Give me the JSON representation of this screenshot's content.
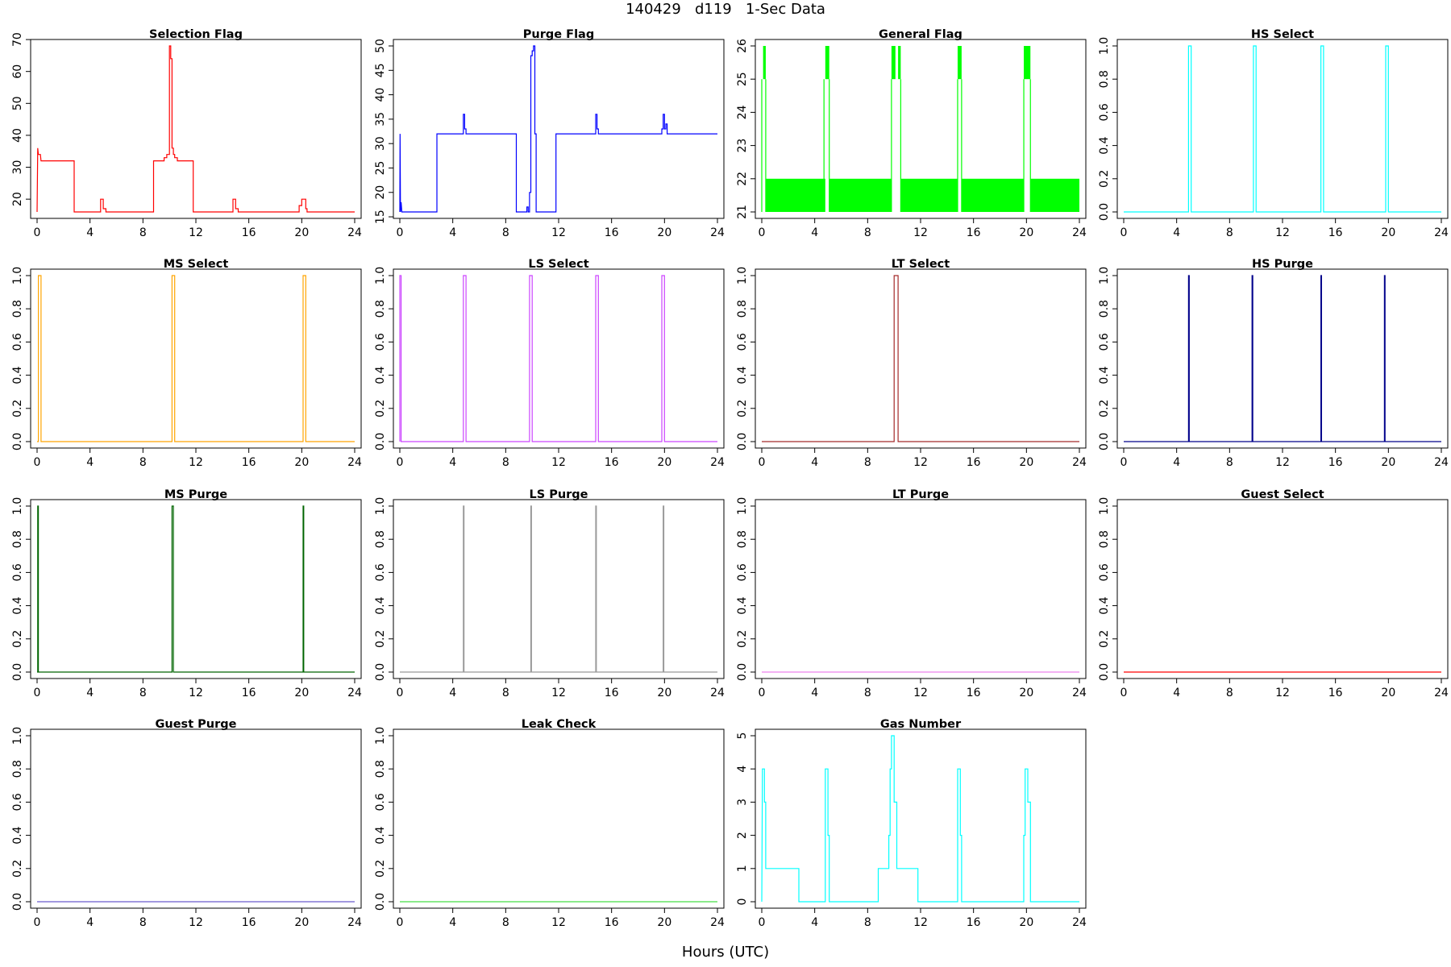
{
  "title": "140429   d119   1-Sec Data",
  "xlabel": "Hours (UTC)",
  "chart_data": [
    {
      "type": "line",
      "title": "Selection Flag",
      "color": "#ff0000",
      "xlim": [
        0,
        24
      ],
      "ylim": [
        16,
        68
      ],
      "yticks": [
        20,
        30,
        40,
        50,
        60,
        70
      ],
      "yticklabels": [
        "20",
        "30",
        "40",
        "50",
        "60",
        "70"
      ],
      "xticks": [
        0,
        4,
        8,
        12,
        16,
        20,
        24
      ],
      "x": [
        0,
        0.05,
        0.1,
        0.25,
        0.3,
        2.8,
        2.8,
        4.8,
        4.8,
        5.0,
        5.0,
        5.2,
        5.2,
        8.8,
        8.8,
        9.6,
        9.6,
        9.8,
        9.8,
        10.0,
        10.0,
        10.1,
        10.1,
        10.2,
        10.2,
        10.3,
        10.3,
        10.4,
        10.4,
        10.6,
        10.6,
        11.8,
        11.8,
        14.8,
        14.8,
        15.0,
        15.0,
        15.2,
        15.2,
        19.8,
        19.8,
        20.0,
        20.0,
        20.3,
        20.3,
        20.4,
        20.4,
        24
      ],
      "y": [
        16,
        36,
        34,
        34,
        32,
        32,
        16,
        16,
        20,
        20,
        17,
        17,
        16,
        16,
        32,
        32,
        33,
        33,
        34,
        34,
        68,
        68,
        64,
        64,
        36,
        36,
        34,
        34,
        33,
        33,
        32,
        32,
        16,
        16,
        20,
        20,
        17,
        17,
        16,
        16,
        18,
        18,
        20,
        20,
        17,
        17,
        16,
        16
      ]
    },
    {
      "type": "line",
      "title": "Purge Flag",
      "color": "#0000ff",
      "xlim": [
        0,
        24
      ],
      "ylim": [
        16,
        50
      ],
      "yticks": [
        15,
        20,
        25,
        30,
        35,
        40,
        45,
        50
      ],
      "yticklabels": [
        "15",
        "20",
        "25",
        "30",
        "35",
        "40",
        "45",
        "50"
      ],
      "xticks": [
        0,
        4,
        8,
        12,
        16,
        20,
        24
      ],
      "x": [
        0,
        0.02,
        0.05,
        0.1,
        0.15,
        2.8,
        2.8,
        4.8,
        4.8,
        4.9,
        4.9,
        5.0,
        5.0,
        8.8,
        8.8,
        9.6,
        9.6,
        9.7,
        9.7,
        9.8,
        9.8,
        9.9,
        9.9,
        10.0,
        10.0,
        10.1,
        10.1,
        10.2,
        10.2,
        10.3,
        10.3,
        11.8,
        11.8,
        14.8,
        14.8,
        14.9,
        14.9,
        15.0,
        15.0,
        19.8,
        19.8,
        19.9,
        19.9,
        20.0,
        20.0,
        20.1,
        20.1,
        20.2,
        20.2,
        24
      ],
      "y": [
        16,
        32,
        16,
        18,
        16,
        16,
        32,
        32,
        36,
        36,
        33,
        33,
        32,
        32,
        16,
        16,
        17,
        17,
        16,
        16,
        20,
        20,
        48,
        48,
        49,
        49,
        50,
        50,
        32,
        32,
        16,
        16,
        32,
        32,
        36,
        36,
        33,
        33,
        32,
        32,
        33,
        33,
        36,
        36,
        33,
        33,
        34,
        34,
        32,
        32
      ]
    },
    {
      "type": "line",
      "title": "General Flag",
      "color": "#00ff00",
      "xlim": [
        0,
        24
      ],
      "ylim": [
        21,
        26
      ],
      "yticks": [
        21,
        22,
        23,
        24,
        25,
        26
      ],
      "yticklabels": [
        "21",
        "22",
        "23",
        "24",
        "25",
        "26"
      ],
      "xticks": [
        0,
        4,
        8,
        12,
        16,
        20,
        24
      ],
      "segments": [
        [
          0,
          0.3,
          21,
          25
        ],
        [
          4.7,
          5.1,
          21,
          25
        ],
        [
          9.8,
          10.5,
          21,
          25
        ],
        [
          14.8,
          15.1,
          21,
          25
        ],
        [
          19.8,
          20.3,
          21,
          25
        ]
      ],
      "bands": [
        [
          0.1,
          0.3,
          25,
          26
        ],
        [
          4.8,
          5.1,
          25,
          26
        ],
        [
          9.8,
          10.1,
          25,
          26
        ],
        [
          10.3,
          10.5,
          25,
          26
        ],
        [
          14.8,
          15.1,
          25,
          26
        ],
        [
          19.8,
          20.3,
          25,
          26
        ],
        [
          0.3,
          4.8,
          21,
          22
        ],
        [
          5.1,
          9.8,
          21,
          22
        ],
        [
          10.5,
          14.8,
          21,
          22
        ],
        [
          15.1,
          19.8,
          21,
          22
        ],
        [
          20.3,
          24,
          21,
          22
        ]
      ]
    },
    {
      "type": "line",
      "title": "HS Select",
      "color": "#00ffff",
      "xlim": [
        0,
        24
      ],
      "ylim": [
        0,
        1
      ],
      "yticks": [
        0,
        0.2,
        0.4,
        0.6,
        0.8,
        1.0
      ],
      "yticklabels": [
        "0.0",
        "0.2",
        "0.4",
        "0.6",
        "0.8",
        "1.0"
      ],
      "xticks": [
        0,
        4,
        8,
        12,
        16,
        20,
        24
      ],
      "pulses": [
        [
          4.9,
          5.1
        ],
        [
          9.8,
          10.0
        ],
        [
          14.9,
          15.1
        ],
        [
          19.8,
          20.0
        ]
      ]
    },
    {
      "type": "line",
      "title": "MS Select",
      "color": "#ffa500",
      "xlim": [
        0,
        24
      ],
      "ylim": [
        0,
        1
      ],
      "yticks": [
        0,
        0.2,
        0.4,
        0.6,
        0.8,
        1.0
      ],
      "yticklabels": [
        "0.0",
        "0.2",
        "0.4",
        "0.6",
        "0.8",
        "1.0"
      ],
      "xticks": [
        0,
        4,
        8,
        12,
        16,
        20,
        24
      ],
      "pulses": [
        [
          0.1,
          0.3
        ],
        [
          10.2,
          10.4
        ],
        [
          20.1,
          20.3
        ]
      ]
    },
    {
      "type": "line",
      "title": "LS Select",
      "color": "#cc44ff",
      "xlim": [
        0,
        24
      ],
      "ylim": [
        0,
        1
      ],
      "yticks": [
        0,
        0.2,
        0.4,
        0.6,
        0.8,
        1.0
      ],
      "yticklabels": [
        "0.0",
        "0.2",
        "0.4",
        "0.6",
        "0.8",
        "1.0"
      ],
      "xticks": [
        0,
        4,
        8,
        12,
        16,
        20,
        24
      ],
      "pulses": [
        [
          0.0,
          0.1
        ],
        [
          4.8,
          5.0
        ],
        [
          9.8,
          10.0
        ],
        [
          14.8,
          15.0
        ],
        [
          19.8,
          20.0
        ]
      ]
    },
    {
      "type": "line",
      "title": "LT Select",
      "color": "#a52a2a",
      "xlim": [
        0,
        24
      ],
      "ylim": [
        0,
        1
      ],
      "yticks": [
        0,
        0.2,
        0.4,
        0.6,
        0.8,
        1.0
      ],
      "yticklabels": [
        "0.0",
        "0.2",
        "0.4",
        "0.6",
        "0.8",
        "1.0"
      ],
      "xticks": [
        0,
        4,
        8,
        12,
        16,
        20,
        24
      ],
      "pulses": [
        [
          10.0,
          10.3
        ]
      ]
    },
    {
      "type": "line",
      "title": "HS Purge",
      "color": "#00008b",
      "xlim": [
        0,
        24
      ],
      "ylim": [
        0,
        1
      ],
      "yticks": [
        0,
        0.2,
        0.4,
        0.6,
        0.8,
        1.0
      ],
      "yticklabels": [
        "0.0",
        "0.2",
        "0.4",
        "0.6",
        "0.8",
        "1.0"
      ],
      "xticks": [
        0,
        4,
        8,
        12,
        16,
        20,
        24
      ],
      "pulses": [
        [
          4.9,
          4.95
        ],
        [
          9.7,
          9.75
        ],
        [
          14.9,
          14.95
        ],
        [
          19.7,
          19.75
        ]
      ]
    },
    {
      "type": "line",
      "title": "MS Purge",
      "color": "#006400",
      "xlim": [
        0,
        24
      ],
      "ylim": [
        0,
        1
      ],
      "yticks": [
        0,
        0.2,
        0.4,
        0.6,
        0.8,
        1.0
      ],
      "yticklabels": [
        "0.0",
        "0.2",
        "0.4",
        "0.6",
        "0.8",
        "1.0"
      ],
      "xticks": [
        0,
        4,
        8,
        12,
        16,
        20,
        24
      ],
      "pulses": [
        [
          0.05,
          0.1
        ],
        [
          10.2,
          10.3
        ],
        [
          20.1,
          20.15
        ]
      ]
    },
    {
      "type": "line",
      "title": "LS Purge",
      "color": "#999999",
      "xlim": [
        0,
        24
      ],
      "ylim": [
        0,
        1
      ],
      "yticks": [
        0,
        0.2,
        0.4,
        0.6,
        0.8,
        1.0
      ],
      "yticklabels": [
        "0.0",
        "0.2",
        "0.4",
        "0.6",
        "0.8",
        "1.0"
      ],
      "xticks": [
        0,
        4,
        8,
        12,
        16,
        20,
        24
      ],
      "pulses": [
        [
          4.8,
          4.85
        ],
        [
          9.9,
          9.95
        ],
        [
          14.8,
          14.85
        ],
        [
          19.9,
          19.95
        ]
      ]
    },
    {
      "type": "line",
      "title": "LT Purge",
      "color": "#ee82ee",
      "xlim": [
        0,
        24
      ],
      "ylim": [
        0,
        1
      ],
      "yticks": [
        0,
        0.2,
        0.4,
        0.6,
        0.8,
        1.0
      ],
      "yticklabels": [
        "0.0",
        "0.2",
        "0.4",
        "0.6",
        "0.8",
        "1.0"
      ],
      "xticks": [
        0,
        4,
        8,
        12,
        16,
        20,
        24
      ],
      "pulses": []
    },
    {
      "type": "line",
      "title": "Guest Select",
      "color": "#ff0000",
      "xlim": [
        0,
        24
      ],
      "ylim": [
        0,
        1
      ],
      "yticks": [
        0,
        0.2,
        0.4,
        0.6,
        0.8,
        1.0
      ],
      "yticklabels": [
        "0.0",
        "0.2",
        "0.4",
        "0.6",
        "0.8",
        "1.0"
      ],
      "xticks": [
        0,
        4,
        8,
        12,
        16,
        20,
        24
      ],
      "pulses": []
    },
    {
      "type": "line",
      "title": "Guest Purge",
      "color": "#6a5acd",
      "xlim": [
        0,
        24
      ],
      "ylim": [
        0,
        1
      ],
      "yticks": [
        0,
        0.2,
        0.4,
        0.6,
        0.8,
        1.0
      ],
      "yticklabels": [
        "0.0",
        "0.2",
        "0.4",
        "0.6",
        "0.8",
        "1.0"
      ],
      "xticks": [
        0,
        4,
        8,
        12,
        16,
        20,
        24
      ],
      "pulses": []
    },
    {
      "type": "line",
      "title": "Leak Check",
      "color": "#44dd44",
      "xlim": [
        0,
        24
      ],
      "ylim": [
        0,
        1
      ],
      "yticks": [
        0,
        0.2,
        0.4,
        0.6,
        0.8,
        1.0
      ],
      "yticklabels": [
        "0.0",
        "0.2",
        "0.4",
        "0.6",
        "0.8",
        "1.0"
      ],
      "xticks": [
        0,
        4,
        8,
        12,
        16,
        20,
        24
      ],
      "pulses": []
    },
    {
      "type": "line",
      "title": "Gas Number",
      "color": "#00ffff",
      "xlim": [
        0,
        24
      ],
      "ylim": [
        0,
        5
      ],
      "yticks": [
        0,
        1,
        2,
        3,
        4,
        5
      ],
      "yticklabels": [
        "0",
        "1",
        "2",
        "3",
        "4",
        "5"
      ],
      "xticks": [
        0,
        4,
        8,
        12,
        16,
        20,
        24
      ],
      "x": [
        0,
        0.05,
        0.1,
        0.2,
        0.2,
        0.3,
        0.3,
        2.8,
        2.8,
        4.8,
        4.8,
        5.0,
        5.0,
        5.1,
        5.1,
        8.8,
        8.8,
        9.6,
        9.6,
        9.7,
        9.7,
        9.8,
        9.8,
        10.0,
        10.0,
        10.2,
        10.2,
        10.4,
        10.4,
        11.8,
        11.8,
        14.8,
        14.8,
        15.0,
        15.0,
        15.1,
        15.1,
        19.8,
        19.8,
        19.9,
        19.9,
        20.1,
        20.1,
        20.3,
        20.3,
        24
      ],
      "y": [
        0,
        4,
        4,
        4,
        3,
        3,
        1,
        1,
        0,
        0,
        4,
        4,
        2,
        2,
        0,
        0,
        1,
        1,
        2,
        2,
        4,
        4,
        5,
        5,
        3,
        3,
        1,
        1,
        1,
        1,
        0,
        0,
        4,
        4,
        2,
        2,
        0,
        0,
        2,
        2,
        4,
        4,
        3,
        3,
        0,
        0
      ]
    }
  ]
}
